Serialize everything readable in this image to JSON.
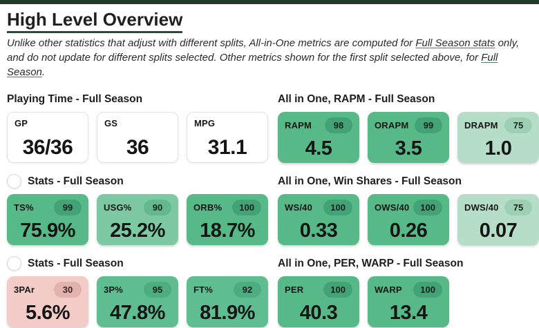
{
  "header": {
    "title": "High Level Overview",
    "description": {
      "part1": "Unlike other statistics that adjust with different splits, All-in-One metrics are computed for ",
      "link1": "Full Season stats",
      "part2": " only, and do not update for different splits selected. Other metrics shown for the first split selected above, for ",
      "link2": "Full Season",
      "part3": "."
    }
  },
  "columns": {
    "left": [
      {
        "title": "Playing Time - Full Season",
        "cards": [
          {
            "label": "GP",
            "value": "36/36"
          },
          {
            "label": "GS",
            "value": "36"
          },
          {
            "label": "MPG",
            "value": "31.1"
          }
        ]
      },
      {
        "title": "Stats - Full Season",
        "cards": [
          {
            "label": "TS%",
            "percentile": "99",
            "value": "75.9%"
          },
          {
            "label": "USG%",
            "percentile": "90",
            "value": "25.2%"
          },
          {
            "label": "ORB%",
            "percentile": "100",
            "value": "18.7%"
          }
        ]
      },
      {
        "title": "Stats - Full Season",
        "cards": [
          {
            "label": "3PAr",
            "percentile": "30",
            "value": "5.6%"
          },
          {
            "label": "3P%",
            "percentile": "95",
            "value": "47.8%"
          },
          {
            "label": "FT%",
            "percentile": "92",
            "value": "81.9%"
          }
        ]
      }
    ],
    "right": [
      {
        "title": "All in One, RAPM - Full Season",
        "cards": [
          {
            "label": "RAPM",
            "percentile": "98",
            "value": "4.5"
          },
          {
            "label": "ORAPM",
            "percentile": "99",
            "value": "3.5"
          },
          {
            "label": "DRAPM",
            "percentile": "75",
            "value": "1.0"
          }
        ]
      },
      {
        "title": "All in One, Win Shares - Full Season",
        "cards": [
          {
            "label": "WS/40",
            "percentile": "100",
            "value": "0.33"
          },
          {
            "label": "OWS/40",
            "percentile": "100",
            "value": "0.26"
          },
          {
            "label": "DWS/40",
            "percentile": "75",
            "value": "0.07"
          }
        ]
      },
      {
        "title": "All in One, PER, WARP - Full Season",
        "cards": [
          {
            "label": "PER",
            "percentile": "100",
            "value": "40.3"
          },
          {
            "label": "WARP",
            "percentile": "100",
            "value": "13.4"
          }
        ]
      }
    ]
  },
  "colors": {
    "top_bar": "#233b2b",
    "title_underline": "#2c4a37",
    "link_underline": "#4c7c62",
    "card_green_strong": "#56b987",
    "card_green_medium": "#5fbe91",
    "card_green_soft": "#7cc9a4",
    "card_green_light": "#b5ddc7",
    "card_pink": "#f3cbc7"
  }
}
